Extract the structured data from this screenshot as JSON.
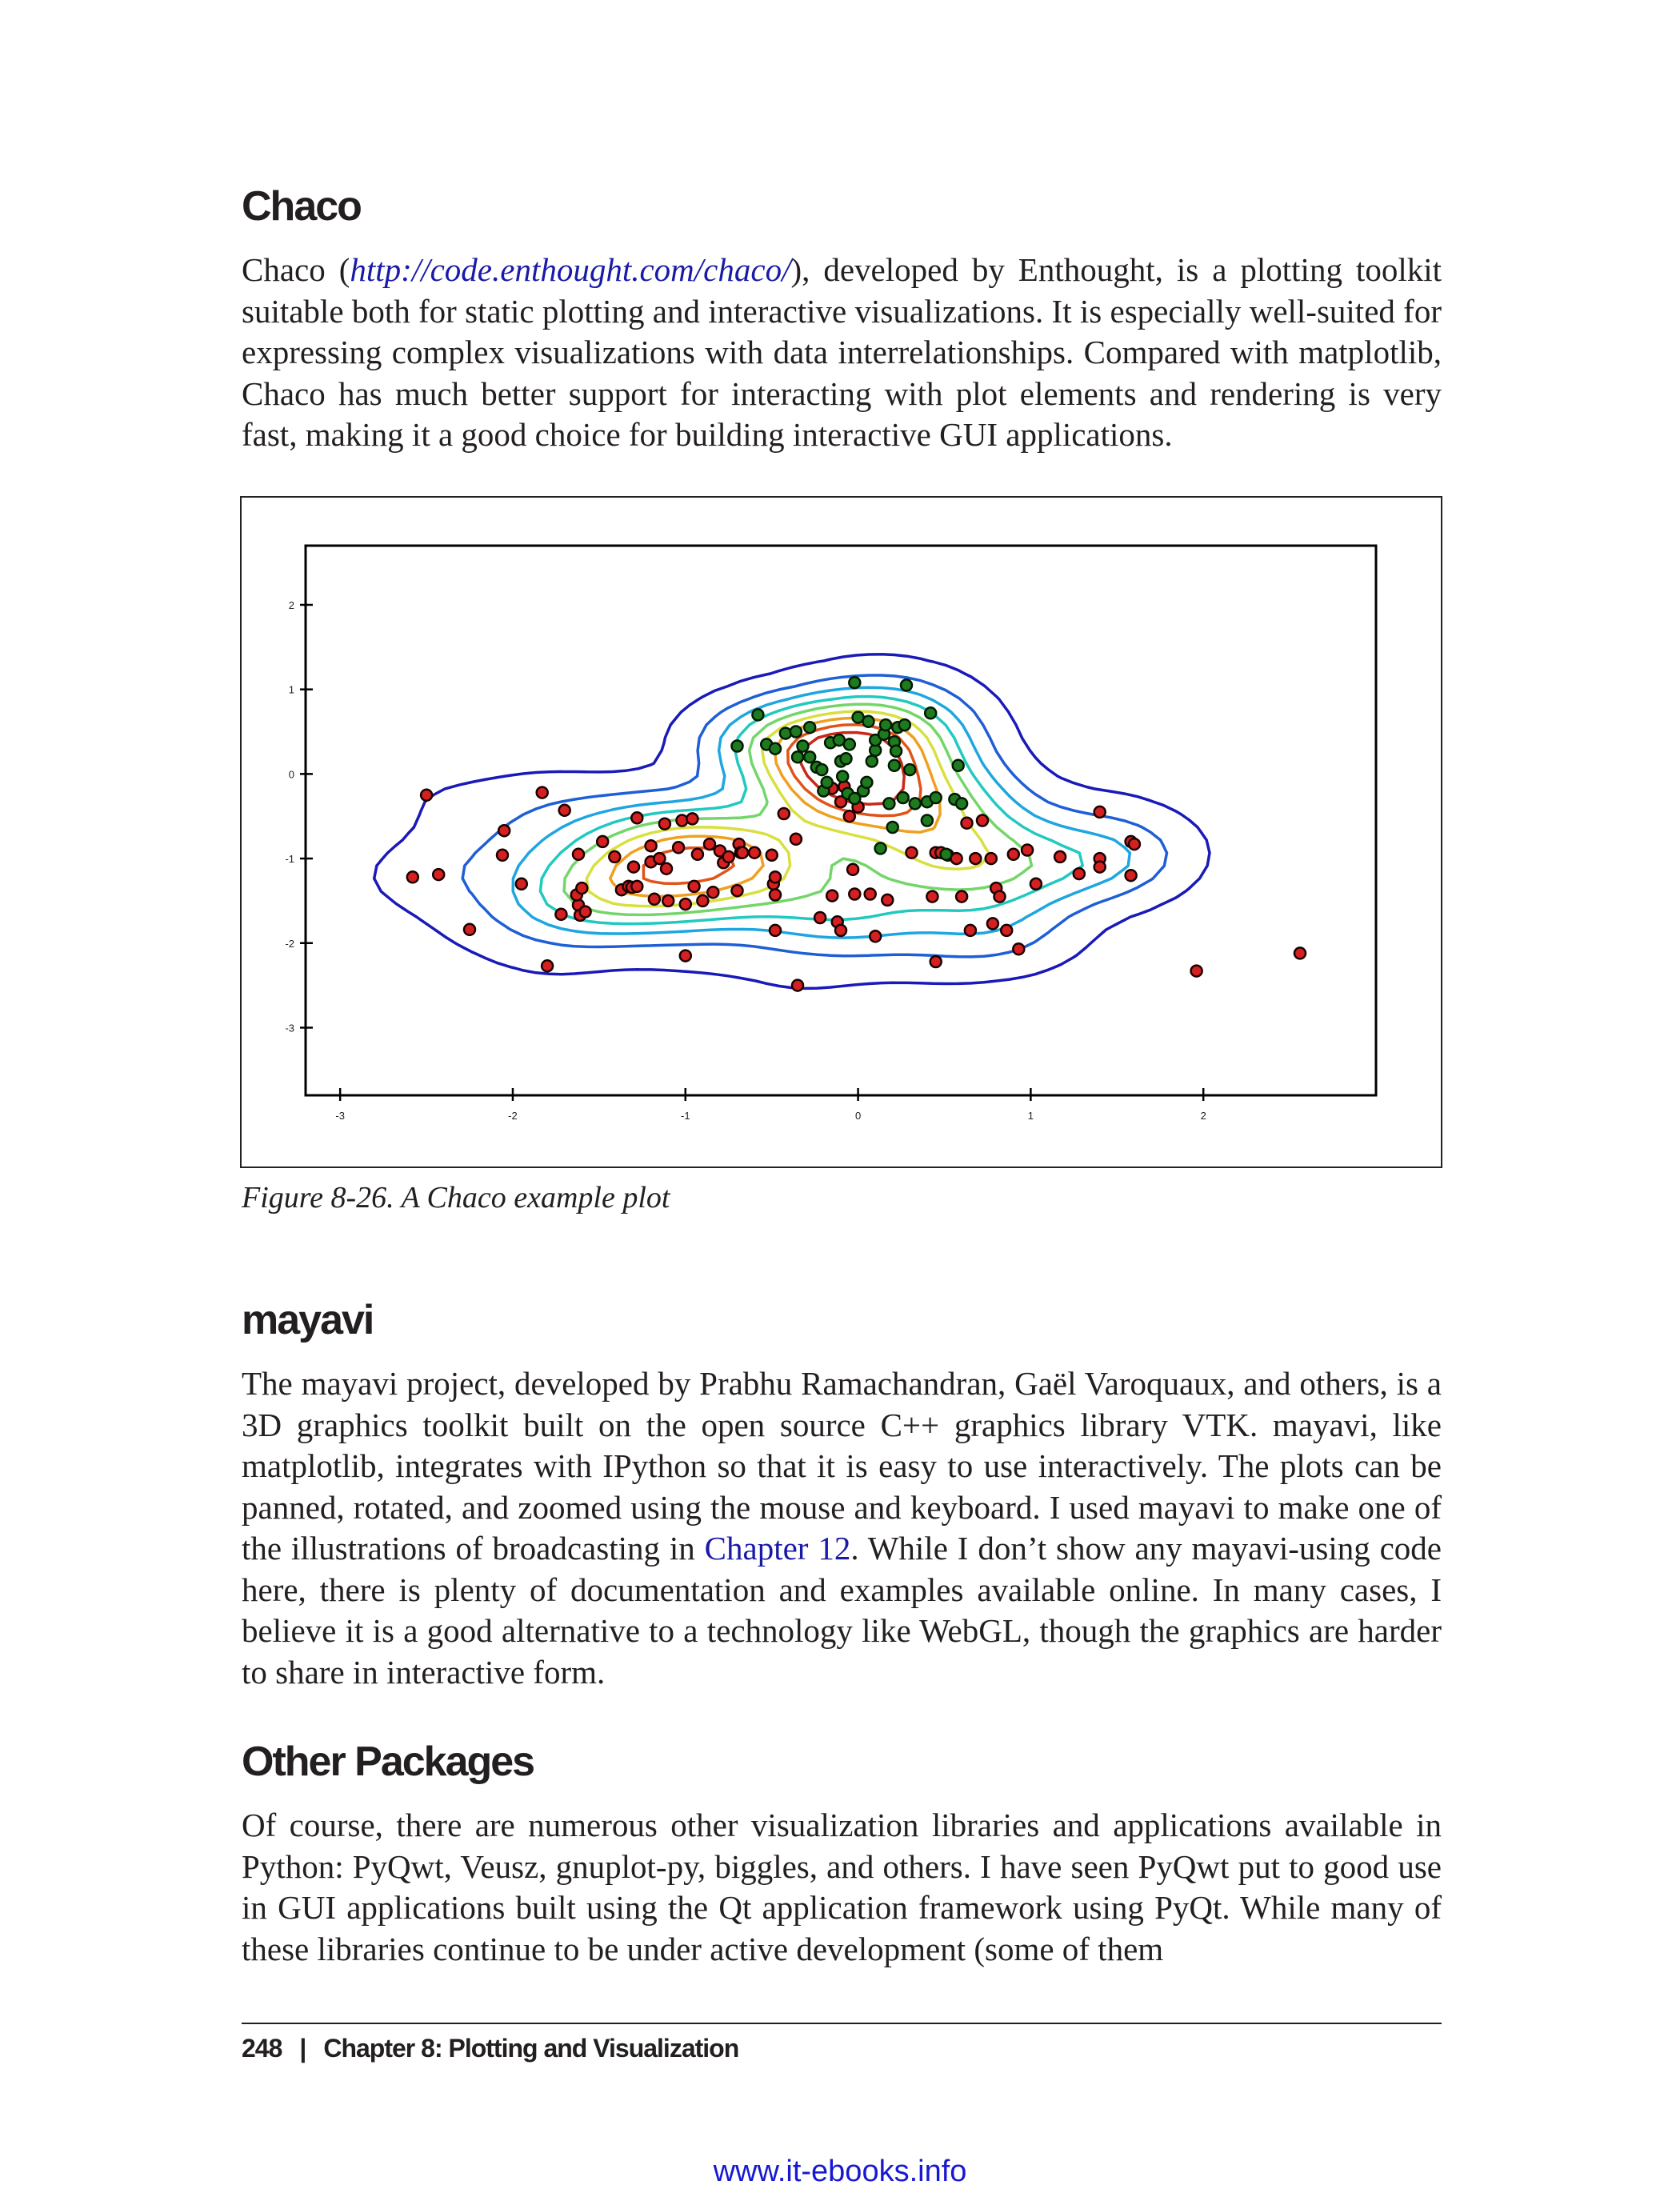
{
  "sections": {
    "chaco": {
      "heading": "Chaco",
      "para_intro": "Chaco (",
      "para_link": "http://code.enthought.com/chaco/",
      "para_rest": "), developed by Enthought, is a plotting toolkit suitable both for static plotting and interactive visualizations. It is especially well-suited for expressing complex visualizations with data interrelationships. Compared with matplotlib, Chaco has much better support for interacting with plot elements and rendering is very fast, making it a good choice for building interactive GUI applications."
    },
    "mayavi": {
      "heading": "mayavi",
      "para_before": "The mayavi project, developed by Prabhu Ramachandran, Gaël Varoquaux, and others, is a 3D graphics toolkit built on the open source C++ graphics library VTK. mayavi, like matplotlib, integrates with IPython so that it is easy to use interactively. The plots can be panned, rotated, and zoomed using the mouse and keyboard. I used mayavi to make one of the illustrations of broadcasting in ",
      "para_link": "Chapter 12",
      "para_after": ". While I don’t show any mayavi-using code here, there is plenty of documentation and examples available online. In many cases, I believe it is a good alternative to a technology like WebGL, though the graphics are harder to share in interactive form."
    },
    "other": {
      "heading": "Other Packages",
      "para": "Of course, there are numerous other visualization libraries and applications available in Python: PyQwt, Veusz, gnuplot-py, biggles, and others. I have seen PyQwt put to good use in GUI applications built using the Qt application framework using PyQt. While many of these libraries continue to be under active development (some of them"
    }
  },
  "figure": {
    "caption": "Figure 8-26. A Chaco example plot"
  },
  "chart_data": {
    "type": "scatter",
    "title": "",
    "xlabel": "",
    "ylabel": "",
    "xlim": [
      -3.2,
      3.0
    ],
    "ylim": [
      -3.8,
      2.7
    ],
    "x_ticks": [
      -3,
      -2,
      -1,
      0,
      1,
      2
    ],
    "x_tick_labels": [
      "-3",
      "-2",
      "-1",
      "0",
      "1",
      "2"
    ],
    "y_ticks": [
      2,
      1,
      0,
      -1,
      -2,
      -3
    ],
    "y_tick_labels": [
      "2",
      "1",
      "0",
      "-1",
      "-2",
      "-3"
    ],
    "grid": false,
    "contours": {
      "colors": [
        "#1a1ab8",
        "#1f5fd6",
        "#1fa6e0",
        "#22c9c0",
        "#74d66a",
        "#d8e040",
        "#f0a020",
        "#e0541a",
        "#c8281a"
      ],
      "levels": 9
    },
    "series": [
      {
        "color": "#d42020",
        "edge": "#1a0000",
        "points": [
          [
            -2.5,
            -0.25
          ],
          [
            -2.58,
            -1.22
          ],
          [
            -2.43,
            -1.19
          ],
          [
            -2.25,
            -1.84
          ],
          [
            -2.05,
            -0.67
          ],
          [
            -2.06,
            -0.96
          ],
          [
            -1.95,
            -1.3
          ],
          [
            -1.83,
            -0.22
          ],
          [
            -1.8,
            -2.27
          ],
          [
            -1.72,
            -1.66
          ],
          [
            -1.7,
            -0.43
          ],
          [
            -1.62,
            -0.95
          ],
          [
            -1.62,
            -1.55
          ],
          [
            -1.63,
            -1.43
          ],
          [
            -1.61,
            -1.67
          ],
          [
            -1.6,
            -1.35
          ],
          [
            -1.58,
            -1.63
          ],
          [
            -1.48,
            -0.8
          ],
          [
            -1.41,
            -0.98
          ],
          [
            -1.37,
            -1.37
          ],
          [
            -1.33,
            -1.33
          ],
          [
            -1.3,
            -1.1
          ],
          [
            -1.31,
            -1.34
          ],
          [
            -1.28,
            -1.33
          ],
          [
            -1.28,
            -0.52
          ],
          [
            -1.2,
            -0.85
          ],
          [
            -1.2,
            -1.04
          ],
          [
            -1.18,
            -1.48
          ],
          [
            -1.15,
            -1.0
          ],
          [
            -1.12,
            -0.59
          ],
          [
            -1.11,
            -1.12
          ],
          [
            -1.1,
            -1.5
          ],
          [
            -1.04,
            -0.87
          ],
          [
            -1.02,
            -0.55
          ],
          [
            -1.0,
            -1.54
          ],
          [
            -1.0,
            -2.15
          ],
          [
            -0.96,
            -0.53
          ],
          [
            -0.95,
            -1.33
          ],
          [
            -0.93,
            -0.95
          ],
          [
            -0.9,
            -1.5
          ],
          [
            -0.86,
            -0.83
          ],
          [
            -0.84,
            -1.4
          ],
          [
            -0.8,
            -0.91
          ],
          [
            -0.78,
            -1.05
          ],
          [
            -0.75,
            -0.98
          ],
          [
            -0.69,
            -0.83
          ],
          [
            -0.68,
            -0.93
          ],
          [
            -0.7,
            -1.38
          ],
          [
            -0.67,
            -0.93
          ],
          [
            -0.6,
            -0.93
          ],
          [
            -0.5,
            -0.96
          ],
          [
            -0.49,
            -1.3
          ],
          [
            -0.48,
            -1.22
          ],
          [
            -0.48,
            -1.43
          ],
          [
            -0.48,
            -1.85
          ],
          [
            -0.43,
            -0.47
          ],
          [
            -0.36,
            -0.77
          ],
          [
            -0.35,
            -2.5
          ],
          [
            -0.22,
            -1.7
          ],
          [
            -0.15,
            -1.44
          ],
          [
            -0.12,
            -1.75
          ],
          [
            -0.1,
            -1.85
          ],
          [
            -0.03,
            -1.13
          ],
          [
            -0.02,
            -1.42
          ],
          [
            0.07,
            -1.42
          ],
          [
            0.1,
            -1.92
          ],
          [
            0.17,
            -1.49
          ],
          [
            0.31,
            -0.93
          ],
          [
            0.43,
            -1.45
          ],
          [
            0.45,
            -0.93
          ],
          [
            0.45,
            -2.22
          ],
          [
            0.48,
            -0.93
          ],
          [
            0.52,
            -0.96
          ],
          [
            0.57,
            -1.0
          ],
          [
            0.6,
            -1.45
          ],
          [
            0.63,
            -0.58
          ],
          [
            0.65,
            -1.85
          ],
          [
            0.68,
            -1.0
          ],
          [
            0.72,
            -0.55
          ],
          [
            0.77,
            -1.0
          ],
          [
            0.78,
            -1.77
          ],
          [
            0.8,
            -1.35
          ],
          [
            0.82,
            -1.45
          ],
          [
            0.86,
            -1.85
          ],
          [
            0.9,
            -0.95
          ],
          [
            0.93,
            -2.07
          ],
          [
            0.98,
            -0.9
          ],
          [
            1.03,
            -1.3
          ],
          [
            1.17,
            -0.98
          ],
          [
            1.28,
            -1.18
          ],
          [
            1.4,
            -1.0
          ],
          [
            1.4,
            -1.1
          ],
          [
            1.4,
            -0.45
          ],
          [
            1.58,
            -0.8
          ],
          [
            1.6,
            -0.83
          ],
          [
            1.58,
            -1.2
          ],
          [
            1.96,
            -2.33
          ],
          [
            2.56,
            -2.12
          ],
          [
            -0.15,
            -0.17
          ],
          [
            -0.08,
            -0.15
          ],
          [
            -0.1,
            -0.33
          ],
          [
            0.0,
            -0.39
          ],
          [
            -0.05,
            -0.5
          ]
        ]
      },
      {
        "color": "#1f7a1f",
        "edge": "#001a00",
        "points": [
          [
            -0.7,
            0.33
          ],
          [
            -0.58,
            0.7
          ],
          [
            -0.53,
            0.35
          ],
          [
            -0.48,
            0.3
          ],
          [
            -0.42,
            0.48
          ],
          [
            -0.36,
            0.5
          ],
          [
            -0.35,
            0.2
          ],
          [
            -0.32,
            0.33
          ],
          [
            -0.28,
            0.55
          ],
          [
            -0.28,
            0.2
          ],
          [
            -0.24,
            0.08
          ],
          [
            -0.21,
            0.05
          ],
          [
            -0.2,
            -0.2
          ],
          [
            -0.18,
            -0.1
          ],
          [
            -0.16,
            0.37
          ],
          [
            -0.11,
            0.4
          ],
          [
            -0.1,
            0.15
          ],
          [
            -0.09,
            -0.03
          ],
          [
            -0.07,
            0.18
          ],
          [
            -0.06,
            -0.23
          ],
          [
            -0.05,
            0.35
          ],
          [
            -0.02,
            -0.29
          ],
          [
            0.03,
            -0.2
          ],
          [
            0.05,
            -0.1
          ],
          [
            -0.02,
            1.08
          ],
          [
            0.0,
            0.67
          ],
          [
            0.06,
            0.62
          ],
          [
            0.08,
            0.15
          ],
          [
            0.1,
            0.28
          ],
          [
            0.1,
            0.4
          ],
          [
            0.15,
            0.47
          ],
          [
            0.16,
            0.58
          ],
          [
            0.18,
            -0.35
          ],
          [
            0.2,
            -0.63
          ],
          [
            0.21,
            0.1
          ],
          [
            0.21,
            0.38
          ],
          [
            0.13,
            -0.88
          ],
          [
            0.22,
            0.27
          ],
          [
            0.23,
            0.55
          ],
          [
            0.26,
            -0.28
          ],
          [
            0.27,
            0.58
          ],
          [
            0.28,
            1.05
          ],
          [
            0.3,
            0.05
          ],
          [
            0.33,
            -0.35
          ],
          [
            0.4,
            -0.33
          ],
          [
            0.4,
            -0.55
          ],
          [
            0.42,
            0.72
          ],
          [
            0.45,
            -0.28
          ],
          [
            0.51,
            -0.95
          ],
          [
            0.56,
            -0.3
          ],
          [
            0.6,
            -0.35
          ],
          [
            0.58,
            0.1
          ]
        ]
      }
    ]
  },
  "footer": {
    "page_number": "248",
    "separator": "|",
    "chapter": "Chapter 8: Plotting and Visualization"
  },
  "watermark": "www.it-ebooks.info"
}
